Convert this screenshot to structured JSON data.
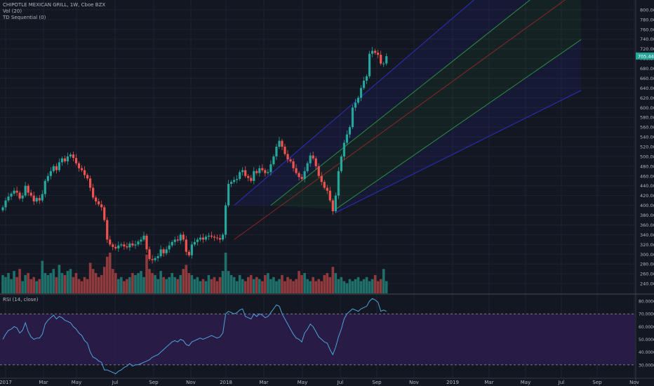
{
  "legend": {
    "title": "CHIPOTLE MEXICAN GRILL, 1W, Cboe BZX",
    "vol": "Vol (20)",
    "td": "TD Sequential (0)",
    "rsi": "RSI (14, close)"
  },
  "colors": {
    "background": "#131722",
    "grid": "#1f2330",
    "up": "#26a69a",
    "down": "#ef5350",
    "vol_up": "#1f6f6a",
    "vol_down": "#8f3a3c",
    "rsi_line": "#4fa3d9",
    "rsi_band": "#2b1d4a",
    "channel_outer": "#3033d6",
    "channel_inner": "#2ea043",
    "channel_mid": "#a02626",
    "axis_text": "#b2b5be"
  },
  "chart_data": {
    "type": "candlestick",
    "title": "CHIPOTLE MEXICAN GRILL, 1W, Cboe BZX",
    "interval": "1W",
    "x_tick_labels": [
      "2017",
      "Mar",
      "May",
      "Jul",
      "Sep",
      "Nov",
      "2018",
      "Mar",
      "May",
      "Jul",
      "Sep",
      "Nov",
      "2019",
      "Mar",
      "May",
      "Jul",
      "Sep",
      "Nov"
    ],
    "price_axis": {
      "ylim": [
        220,
        820
      ],
      "tick_labels": [
        "240.00",
        "260.00",
        "280.00",
        "300.00",
        "320.00",
        "340.00",
        "360.00",
        "380.00",
        "400.00",
        "420.00",
        "440.00",
        "460.00",
        "480.00",
        "500.00",
        "520.00",
        "540.00",
        "560.00",
        "580.00",
        "600.00",
        "620.00",
        "640.00",
        "660.00",
        "680.00",
        "700.00",
        "720.00",
        "740.00",
        "760.00",
        "780.00",
        "800.00"
      ],
      "last_price_label": "705.44",
      "last_price": 705.44
    },
    "close_series": [
      396,
      410,
      418,
      424,
      430,
      426,
      414,
      420,
      440,
      426,
      420,
      408,
      415,
      410,
      423,
      450,
      460,
      470,
      480,
      472,
      488,
      496,
      490,
      500,
      504,
      497,
      486,
      476,
      472,
      462,
      455,
      436,
      416,
      408,
      402,
      396,
      370,
      330,
      320,
      315,
      312,
      318,
      320,
      316,
      314,
      322,
      318,
      320,
      326,
      330,
      338,
      310,
      290,
      288,
      292,
      296,
      310,
      302,
      310,
      318,
      325,
      330,
      328,
      340,
      330,
      305,
      298,
      320,
      325,
      330,
      334,
      330,
      336,
      338,
      336,
      334,
      333,
      330,
      340,
      400,
      444,
      448,
      452,
      454,
      468,
      472,
      460,
      456,
      450,
      470,
      466,
      476,
      472,
      466,
      468,
      484,
      500,
      520,
      532,
      520,
      505,
      494,
      490,
      476,
      466,
      458,
      454,
      470,
      486,
      502,
      496,
      480,
      460,
      448,
      436,
      430,
      410,
      388,
      420,
      470,
      500,
      528,
      545,
      560,
      600,
      610,
      620,
      640,
      655,
      664,
      710,
      716,
      712,
      708,
      690,
      690,
      705
    ],
    "volume_scale": "relative (0-1, axis unlabeled)",
    "volume_series": [
      0.45,
      0.4,
      0.5,
      0.35,
      0.55,
      0.4,
      0.6,
      0.3,
      0.45,
      0.5,
      0.35,
      0.4,
      0.3,
      0.35,
      0.8,
      0.5,
      0.45,
      0.5,
      0.6,
      0.4,
      0.7,
      0.5,
      0.45,
      0.55,
      0.6,
      0.4,
      0.5,
      0.35,
      0.3,
      0.4,
      0.35,
      0.75,
      0.6,
      0.5,
      0.4,
      0.45,
      0.65,
      0.9,
      1.0,
      0.6,
      0.5,
      0.35,
      0.4,
      0.3,
      0.35,
      0.4,
      0.5,
      0.45,
      0.5,
      0.55,
      0.4,
      0.95,
      0.6,
      0.5,
      0.45,
      0.35,
      0.55,
      0.4,
      0.35,
      0.4,
      0.5,
      0.4,
      0.35,
      0.45,
      0.6,
      0.7,
      0.5,
      0.45,
      0.35,
      0.4,
      0.3,
      0.35,
      0.3,
      0.45,
      0.35,
      0.4,
      0.3,
      0.4,
      0.55,
      1.0,
      0.55,
      0.45,
      0.4,
      0.3,
      0.45,
      0.35,
      0.3,
      0.4,
      0.45,
      0.35,
      0.4,
      0.35,
      0.3,
      0.45,
      0.5,
      0.35,
      0.4,
      0.3,
      0.35,
      0.45,
      0.3,
      0.4,
      0.35,
      0.3,
      0.35,
      0.55,
      0.45,
      0.5,
      0.35,
      0.3,
      0.4,
      0.3,
      0.35,
      0.3,
      0.45,
      0.5,
      0.4,
      0.65,
      0.5,
      0.35,
      0.4,
      0.3,
      0.25,
      0.35,
      0.3,
      0.35,
      0.4,
      0.3,
      0.35,
      0.4,
      0.3,
      0.35,
      0.45,
      0.3,
      0.35,
      0.6,
      0.3
    ],
    "rsi": {
      "label": "RSI (14, close)",
      "ylim": [
        20,
        85
      ],
      "tick_labels": [
        "30.0000",
        "40.0000",
        "50.0000",
        "60.0000",
        "70.0000",
        "80.0000"
      ],
      "overbought": 70,
      "oversold": 30,
      "values": [
        50,
        54,
        57,
        58,
        60,
        59,
        55,
        57,
        63,
        56,
        52,
        50,
        51,
        51,
        54,
        62,
        65,
        67,
        69,
        66,
        68,
        67,
        65,
        64,
        63,
        60,
        58,
        55,
        53,
        49,
        47,
        40,
        36,
        35,
        33,
        32,
        26,
        26,
        25,
        24,
        23,
        25,
        26,
        28,
        29,
        31,
        29,
        30,
        30,
        31,
        32,
        33,
        34,
        36,
        37,
        38,
        40,
        42,
        44,
        46,
        48,
        49,
        48,
        50,
        49,
        46,
        45,
        48,
        49,
        50,
        51,
        50,
        51,
        52,
        53,
        52,
        51,
        52,
        55,
        70,
        72,
        71,
        70,
        71,
        73,
        74,
        68,
        67,
        66,
        70,
        68,
        70,
        69,
        67,
        68,
        71,
        74,
        77,
        76,
        70,
        66,
        62,
        58,
        54,
        51,
        50,
        48,
        55,
        58,
        62,
        60,
        56,
        52,
        50,
        48,
        47,
        42,
        38,
        44,
        52,
        58,
        66,
        70,
        72,
        74,
        73,
        72,
        74,
        75,
        76,
        80,
        82,
        81,
        79,
        72,
        73,
        72
      ]
    },
    "channels": [
      {
        "name": "pitchfork-outer-upper",
        "from": {
          "index": 82,
          "price": 400
        },
        "to": {
          "index": 205,
          "price": 1008
        }
      },
      {
        "name": "pitchfork-inner-upper",
        "from": {
          "index": 95,
          "price": 400
        },
        "to": {
          "index": 205,
          "price": 903
        }
      },
      {
        "name": "pitchfork-median",
        "from": {
          "index": 82,
          "price": 330
        },
        "to": {
          "index": 205,
          "price": 844
        }
      },
      {
        "name": "pitchfork-inner-lower",
        "from": {
          "index": 118,
          "price": 392
        },
        "to": {
          "index": 205,
          "price": 739
        }
      },
      {
        "name": "pitchfork-outer-lower",
        "from": {
          "index": 118,
          "price": 385
        },
        "to": {
          "index": 205,
          "price": 635
        }
      }
    ],
    "grid": true,
    "legend_position": "top-left"
  }
}
